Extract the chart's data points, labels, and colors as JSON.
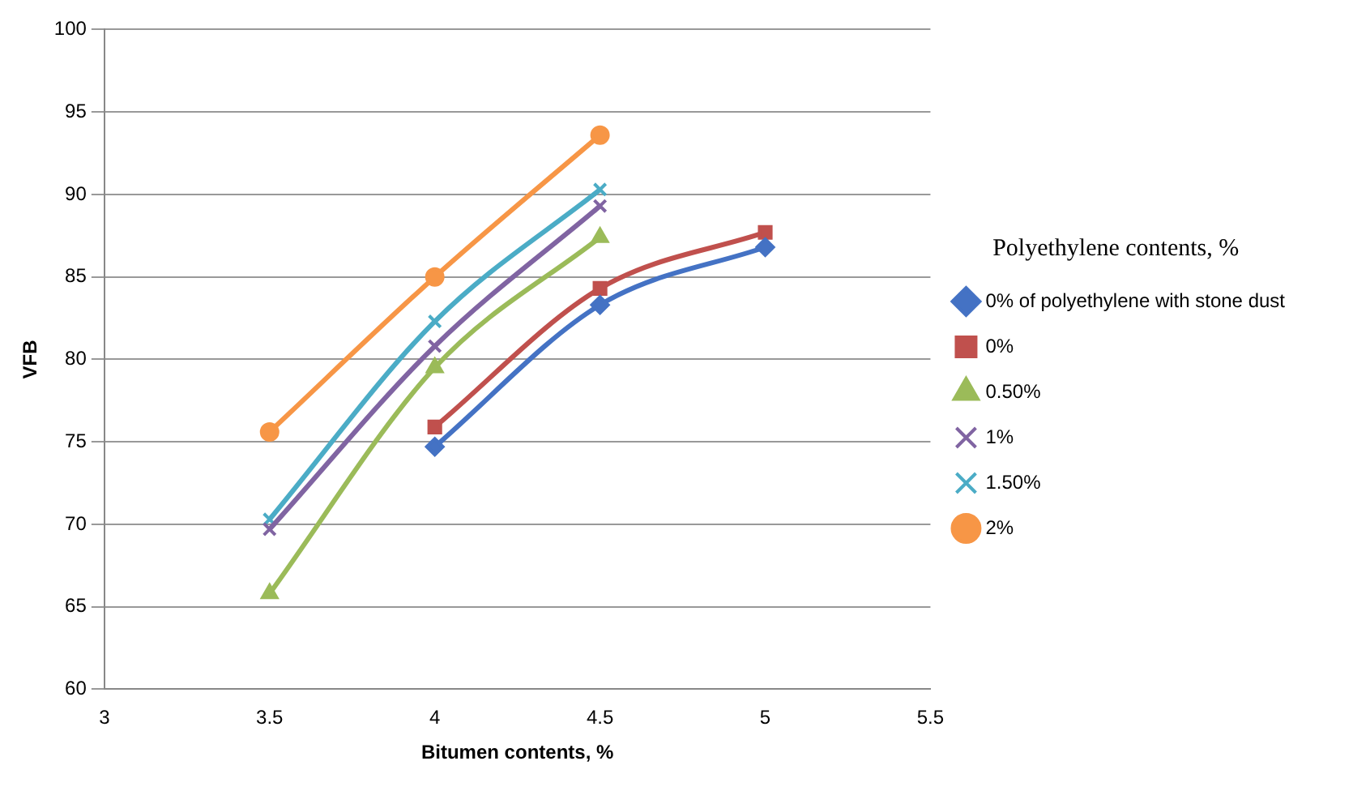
{
  "chart_data": {
    "type": "line",
    "xlabel": "Bitumen contents, %",
    "ylabel": "VFB",
    "legend_title": "Polyethylene contents, %",
    "legend": "right",
    "grid": "y",
    "xlim": [
      3,
      5.5
    ],
    "xticks": [
      3,
      3.5,
      4,
      4.5,
      5,
      5.5
    ],
    "ylim": [
      60,
      100
    ],
    "yticks": [
      60,
      65,
      70,
      75,
      80,
      85,
      90,
      95,
      100
    ],
    "series": [
      {
        "name": "0% of polyethylene with stone dust",
        "color": "#4472c4",
        "marker": "diamond",
        "x": [
          4,
          4.5,
          5
        ],
        "values": [
          74.7,
          83.3,
          86.8
        ]
      },
      {
        "name": "0%",
        "color": "#c0504d",
        "marker": "square",
        "x": [
          4,
          4.5,
          5
        ],
        "values": [
          75.9,
          84.3,
          87.7
        ]
      },
      {
        "name": "0.50%",
        "color": "#9bbb59",
        "marker": "triangle",
        "x": [
          3.5,
          4,
          4.5
        ],
        "values": [
          65.8,
          79.5,
          87.4
        ]
      },
      {
        "name": "1%",
        "color": "#8064a2",
        "marker": "cross",
        "x": [
          3.5,
          4,
          4.5
        ],
        "values": [
          69.7,
          80.8,
          89.3
        ]
      },
      {
        "name": "1.50%",
        "color": "#4bacc6",
        "marker": "cross",
        "x": [
          3.5,
          4,
          4.5
        ],
        "values": [
          70.3,
          82.3,
          90.3
        ]
      },
      {
        "name": "2%",
        "color": "#f79646",
        "marker": "circle",
        "x": [
          3.5,
          4,
          4.5
        ],
        "values": [
          75.6,
          85.0,
          93.6
        ]
      }
    ]
  }
}
